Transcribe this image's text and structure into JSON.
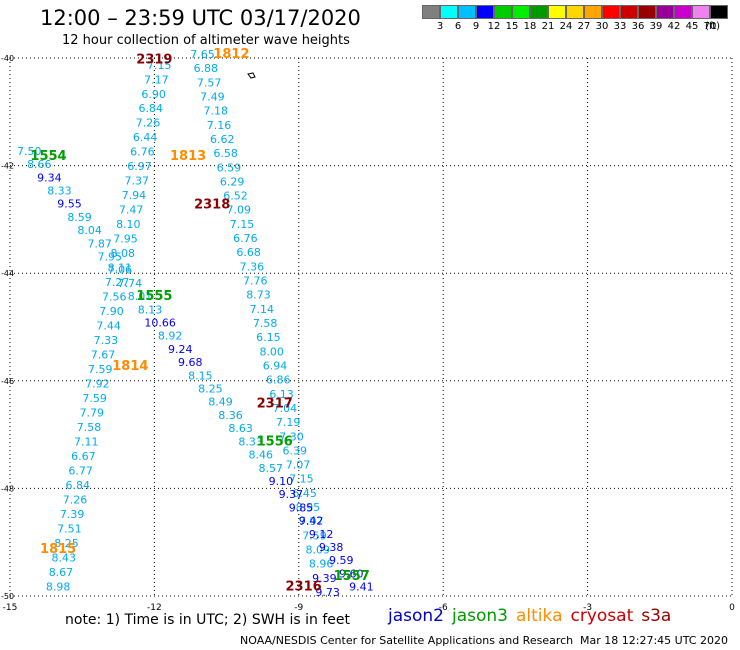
{
  "header": {
    "title": "12:00 – 23:59 UTC 03/17/2020",
    "subtitle": "12 hour collection of altimeter wave heights"
  },
  "legend": {
    "colors": [
      "#808080",
      "#00ffff",
      "#00bfff",
      "#0000ff",
      "#00cc00",
      "#00ee00",
      "#009900",
      "#ffff00",
      "#ffd700",
      "#ffa500",
      "#ff0000",
      "#cc0000",
      "#990000",
      "#990099",
      "#cc00cc",
      "#ee82ee",
      "#000000"
    ],
    "labels": [
      "3",
      "6",
      "9",
      "12",
      "15",
      "18",
      "21",
      "24",
      "27",
      "30",
      "33",
      "36",
      "39",
      "42",
      "45",
      "70"
    ],
    "unit": "(ft)"
  },
  "map": {
    "x_ticks": [
      "-15",
      "-12",
      "-9",
      "-6",
      "-3",
      "0"
    ],
    "y_ticks": [
      "-40",
      "-42",
      "-44",
      "-46",
      "-48",
      "-50"
    ],
    "pass_labels": [
      {
        "text": "2319",
        "color": "#8b0000",
        "lon": -12.0,
        "lat": -40.1
      },
      {
        "text": "1812",
        "color": "#ff8c00",
        "lon": -10.4,
        "lat": -40.0
      },
      {
        "text": "1554",
        "color": "#00a000",
        "lon": -14.2,
        "lat": -41.9
      },
      {
        "text": "1813",
        "color": "#ff8c00",
        "lon": -11.3,
        "lat": -41.9
      },
      {
        "text": "2318",
        "color": "#8b0000",
        "lon": -10.8,
        "lat": -42.8
      },
      {
        "text": "1555",
        "color": "#00a000",
        "lon": -12.0,
        "lat": -44.5
      },
      {
        "text": "1814",
        "color": "#ff8c00",
        "lon": -12.5,
        "lat": -45.8
      },
      {
        "text": "2317",
        "color": "#8b0000",
        "lon": -9.5,
        "lat": -46.5
      },
      {
        "text": "1556",
        "color": "#00a000",
        "lon": -9.5,
        "lat": -47.2
      },
      {
        "text": "1815",
        "color": "#ff8c00",
        "lon": -14.0,
        "lat": -49.2
      },
      {
        "text": "1557",
        "color": "#00a000",
        "lon": -7.9,
        "lat": -49.7
      },
      {
        "text": "2316",
        "color": "#8b0000",
        "lon": -8.9,
        "lat": -49.9
      }
    ],
    "tracks": [
      {
        "name": "altika-descending-west",
        "start": [
          -11.9,
          -40.2
        ],
        "end": [
          -14.0,
          -49.9
        ],
        "values": [
          "7.15",
          "7.17",
          "6.90",
          "6.84",
          "7.26",
          "6.44",
          "6.76",
          "6.97",
          "7.37",
          "7.94",
          "7.47",
          "8.10",
          "7.95",
          "8.08",
          "8.11",
          "7.27",
          "7.56",
          "7.90",
          "7.44",
          "7.33",
          "7.67",
          "7.59",
          "7.92",
          "7.59",
          "7.79",
          "7.58",
          "7.11",
          "6.67",
          "6.77",
          "6.84",
          "7.26",
          "7.39",
          "7.51",
          "8.25",
          "8.43",
          "8.67",
          "8.98"
        ]
      },
      {
        "name": "altika-descending-east",
        "start": [
          -11.0,
          -40.0
        ],
        "end": [
          -8.4,
          -50.0
        ],
        "values": [
          "7.65",
          "6.88",
          "7.57",
          "7.49",
          "7.18",
          "7.16",
          "6.62",
          "6.58",
          "6.59",
          "6.29",
          "6.52",
          "7.09",
          "7.15",
          "6.76",
          "6.68",
          "7.36",
          "7.76",
          "8.73",
          "7.14",
          "7.58",
          "6.15",
          "8.00",
          "6.94",
          "6.86",
          "6.13",
          "7.04",
          "7.19",
          "7.30",
          "6.39",
          "7.07",
          "7.15",
          "6.45",
          "8.95",
          "7.97",
          "7.59",
          "8.09",
          "8.96",
          "9.39",
          "9.73"
        ]
      },
      {
        "name": "jason-ascending",
        "start": [
          -14.6,
          -41.8
        ],
        "end": [
          -7.7,
          -49.9
        ],
        "values": [
          "7.50",
          "8.66",
          "9.34",
          "8.33",
          "9.55",
          "8.59",
          "8.04",
          "7.87",
          "7.95",
          "7.06",
          "7.74",
          "8.01",
          "8.13",
          "10.66",
          "8.92",
          "9.24",
          "9.68",
          "8.15",
          "8.25",
          "8.49",
          "8.36",
          "8.63",
          "8.33",
          "8.46",
          "8.57",
          "9.10",
          "9.37",
          "9.85",
          "9.42",
          "9.12",
          "9.38",
          "9.59",
          "9.60",
          "9.41"
        ]
      }
    ]
  },
  "footer": {
    "note": "note:  1) Time is in UTC;  2) SWH is in feet",
    "missions": [
      {
        "name": "jason2",
        "color": "#0000cc"
      },
      {
        "name": "jason3",
        "color": "#009900"
      },
      {
        "name": "altika",
        "color": "#ff8c00"
      },
      {
        "name": "cryosat",
        "color": "#cc0000"
      },
      {
        "name": "s3a",
        "color": "#990000"
      }
    ],
    "credit": "NOAA/NESDIS Center for Satellite Applications and Research",
    "timestamp": "Mar 18 12:27:45 UTC 2020"
  }
}
